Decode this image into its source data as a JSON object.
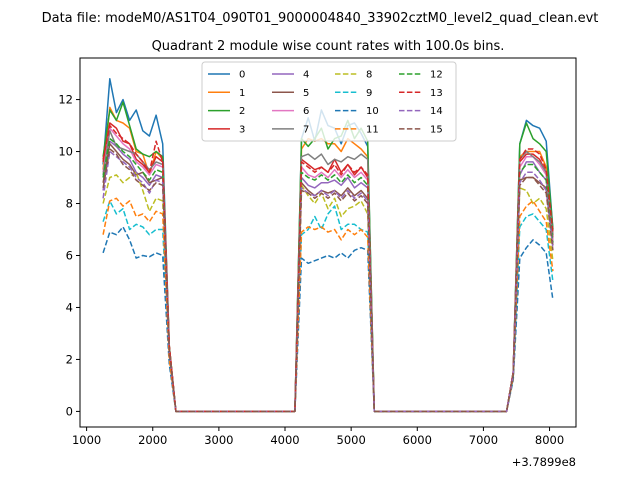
{
  "suptitle": "Data file: modeM0/AS1T04_090T01_9000004840_33902cztM0_level2_quad_clean.evt",
  "chart_data": {
    "type": "line",
    "title": "Quadrant 2 module wise count rates with 100.0s bins.",
    "xlabel": "",
    "ylabel": "",
    "x_offset_label": "+3.7899e8",
    "xlim": [
      900,
      8400
    ],
    "ylim": [
      -0.6,
      13.6
    ],
    "xticks": [
      1000,
      2000,
      3000,
      4000,
      5000,
      6000,
      7000,
      8000
    ],
    "yticks": [
      0,
      2,
      4,
      6,
      8,
      10,
      12
    ],
    "legend_location": "top-center",
    "x": [
      1250,
      1350,
      1450,
      1550,
      1650,
      1750,
      1850,
      1950,
      2050,
      2150,
      2250,
      2350,
      2450,
      4150,
      4250,
      4350,
      4450,
      4550,
      4650,
      4750,
      4850,
      4950,
      5050,
      5150,
      5250,
      5350,
      5450,
      7350,
      7450,
      7550,
      7650,
      7750,
      7850,
      7950,
      8050
    ],
    "series": [
      {
        "name": "0",
        "color": "#1f77b4",
        "dash": "solid",
        "values": [
          9.5,
          12.8,
          11.5,
          12.0,
          11.2,
          11.6,
          10.8,
          10.6,
          11.4,
          10.3,
          2.5,
          0,
          0,
          0,
          10.5,
          11.3,
          10.4,
          11.6,
          11.0,
          10.9,
          10.3,
          11.0,
          11.1,
          10.7,
          10.2,
          0,
          0,
          0,
          1.5,
          10.3,
          11.2,
          11.0,
          10.9,
          10.4,
          7.0
        ]
      },
      {
        "name": "1",
        "color": "#ff7f0e",
        "dash": "solid",
        "values": [
          9.3,
          11.7,
          11.2,
          11.1,
          10.9,
          10.0,
          9.9,
          9.1,
          10.0,
          9.7,
          2.5,
          0,
          0,
          0,
          10.1,
          10.5,
          10.4,
          10.5,
          10.3,
          10.3,
          10.0,
          10.5,
          10.3,
          10.1,
          9.8,
          0,
          0,
          0,
          1.5,
          9.8,
          10.0,
          10.0,
          10.0,
          9.4,
          6.8
        ]
      },
      {
        "name": "2",
        "color": "#2ca02c",
        "dash": "solid",
        "values": [
          9.8,
          11.6,
          11.2,
          11.9,
          11.0,
          10.1,
          9.9,
          9.8,
          10.0,
          9.8,
          2.5,
          0,
          0,
          0,
          10.5,
          10.2,
          10.5,
          10.9,
          10.1,
          10.5,
          10.6,
          11.2,
          10.5,
          10.9,
          10.4,
          0,
          0,
          0,
          1.5,
          10.3,
          11.1,
          10.5,
          10.3,
          10.0,
          7.0
        ]
      },
      {
        "name": "3",
        "color": "#d62728",
        "dash": "solid",
        "values": [
          9.6,
          11.1,
          10.9,
          10.4,
          10.3,
          9.7,
          9.5,
          9.2,
          9.8,
          9.6,
          2.5,
          0,
          0,
          0,
          9.7,
          9.5,
          9.3,
          9.4,
          9.2,
          9.7,
          9.2,
          9.5,
          9.1,
          9.4,
          9.0,
          0,
          0,
          0,
          1.5,
          9.6,
          9.9,
          9.9,
          9.7,
          9.2,
          6.7
        ]
      },
      {
        "name": "4",
        "color": "#9467bd",
        "dash": "solid",
        "values": [
          8.5,
          10.4,
          10.2,
          9.9,
          9.7,
          9.2,
          9.0,
          8.7,
          9.1,
          9.0,
          2.3,
          0,
          0,
          0,
          9.0,
          8.7,
          8.6,
          8.8,
          8.8,
          8.9,
          8.7,
          9.0,
          8.6,
          8.8,
          8.6,
          0,
          0,
          0,
          1.4,
          9.1,
          9.6,
          9.6,
          9.2,
          8.9,
          6.5
        ]
      },
      {
        "name": "5",
        "color": "#8c564b",
        "dash": "solid",
        "values": [
          8.8,
          10.3,
          10.0,
          9.7,
          9.5,
          9.1,
          9.2,
          8.8,
          8.9,
          9.0,
          2.3,
          0,
          0,
          0,
          8.8,
          8.5,
          8.3,
          8.5,
          8.4,
          8.5,
          8.3,
          8.6,
          8.3,
          8.5,
          8.2,
          0,
          0,
          0,
          1.4,
          8.9,
          9.0,
          9.0,
          8.8,
          8.6,
          6.4
        ]
      },
      {
        "name": "6",
        "color": "#e377c2",
        "dash": "solid",
        "values": [
          9.2,
          10.9,
          10.6,
          10.3,
          10.1,
          9.6,
          9.4,
          9.1,
          9.5,
          9.4,
          2.4,
          0,
          0,
          0,
          9.4,
          9.1,
          9.0,
          9.2,
          9.0,
          9.3,
          9.0,
          9.3,
          9.0,
          9.2,
          8.9,
          0,
          0,
          0,
          1.5,
          9.4,
          9.8,
          9.8,
          9.5,
          9.1,
          6.6
        ]
      },
      {
        "name": "7",
        "color": "#7f7f7f",
        "dash": "solid",
        "values": [
          9.1,
          10.8,
          10.2,
          10.1,
          10.0,
          9.9,
          9.6,
          9.3,
          9.6,
          9.5,
          2.4,
          0,
          0,
          0,
          9.8,
          9.9,
          9.7,
          9.9,
          9.5,
          9.7,
          9.6,
          9.8,
          9.7,
          9.9,
          9.7,
          0,
          0,
          0,
          1.5,
          9.7,
          10.0,
          9.8,
          9.6,
          9.2,
          6.8
        ]
      },
      {
        "name": "8",
        "color": "#bcbd22",
        "dash": "dashed",
        "values": [
          8.0,
          9.0,
          9.1,
          8.8,
          9.0,
          9.2,
          8.5,
          7.7,
          8.2,
          8.1,
          2.2,
          0,
          0,
          0,
          8.7,
          8.3,
          8.0,
          8.4,
          7.8,
          8.2,
          7.5,
          7.8,
          7.9,
          8.1,
          7.6,
          0,
          0,
          0,
          1.4,
          8.6,
          8.5,
          8.0,
          8.2,
          7.8,
          5.8
        ]
      },
      {
        "name": "9",
        "color": "#17becf",
        "dash": "dashed",
        "values": [
          7.3,
          8.1,
          7.6,
          7.8,
          7.0,
          7.2,
          7.1,
          6.8,
          7.0,
          7.0,
          2.0,
          0,
          0,
          0,
          6.8,
          7.0,
          7.5,
          7.0,
          7.6,
          7.9,
          7.0,
          7.2,
          7.2,
          7.0,
          6.9,
          0,
          0,
          0,
          1.3,
          7.1,
          7.5,
          7.6,
          7.3,
          7.0,
          5.0
        ]
      },
      {
        "name": "10",
        "color": "#1f77b4",
        "dash": "dashed",
        "values": [
          6.1,
          6.9,
          6.8,
          7.1,
          6.6,
          5.9,
          6.0,
          5.95,
          6.1,
          6.0,
          1.8,
          0,
          0,
          0,
          5.9,
          5.7,
          5.8,
          5.9,
          6.0,
          5.9,
          6.1,
          5.9,
          6.2,
          6.3,
          6.2,
          0,
          0,
          0,
          1.2,
          5.9,
          6.3,
          6.6,
          6.4,
          6.1,
          4.3
        ]
      },
      {
        "name": "11",
        "color": "#ff7f0e",
        "dash": "dashed",
        "values": [
          6.8,
          8.1,
          8.2,
          7.9,
          8.1,
          7.5,
          7.6,
          7.3,
          7.7,
          7.6,
          2.0,
          0,
          0,
          0,
          6.9,
          7.1,
          7.0,
          7.1,
          6.9,
          7.0,
          6.6,
          7.0,
          6.8,
          7.0,
          6.7,
          0,
          0,
          0,
          1.3,
          7.5,
          7.9,
          8.1,
          7.7,
          7.3,
          5.4
        ]
      },
      {
        "name": "12",
        "color": "#2ca02c",
        "dash": "dashed",
        "values": [
          9.0,
          10.5,
          10.3,
          10.0,
          9.8,
          9.5,
          9.2,
          8.9,
          9.3,
          9.2,
          2.4,
          0,
          0,
          0,
          9.2,
          9.0,
          8.9,
          9.1,
          8.9,
          9.1,
          8.8,
          9.1,
          8.8,
          9.0,
          8.7,
          0,
          0,
          0,
          1.4,
          9.2,
          9.5,
          9.5,
          9.2,
          8.9,
          6.5
        ]
      },
      {
        "name": "13",
        "color": "#d62728",
        "dash": "dashed",
        "values": [
          9.7,
          11.0,
          10.7,
          10.5,
          10.3,
          9.9,
          9.6,
          9.2,
          10.4,
          9.6,
          2.5,
          0,
          0,
          0,
          9.6,
          9.4,
          9.2,
          9.4,
          9.2,
          9.5,
          9.1,
          9.5,
          9.2,
          9.4,
          9.1,
          0,
          0,
          0,
          1.5,
          9.7,
          10.1,
          10.1,
          9.9,
          9.3,
          6.9
        ]
      },
      {
        "name": "14",
        "color": "#9467bd",
        "dash": "dashed",
        "values": [
          8.2,
          10.0,
          9.8,
          9.6,
          9.4,
          9.0,
          8.8,
          8.4,
          8.9,
          8.8,
          2.3,
          0,
          0,
          0,
          8.6,
          8.4,
          8.3,
          8.5,
          8.3,
          8.5,
          8.2,
          8.5,
          8.2,
          8.4,
          8.1,
          0,
          0,
          0,
          1.4,
          8.8,
          9.2,
          9.2,
          8.9,
          8.5,
          6.3
        ]
      },
      {
        "name": "15",
        "color": "#8c564b",
        "dash": "dashed",
        "values": [
          8.6,
          10.1,
          9.9,
          9.5,
          9.3,
          8.9,
          8.7,
          8.5,
          8.8,
          8.7,
          2.3,
          0,
          0,
          0,
          8.5,
          8.4,
          8.2,
          8.4,
          8.2,
          8.4,
          8.1,
          8.4,
          8.1,
          8.3,
          8.0,
          0,
          0,
          0,
          1.4,
          8.7,
          9.0,
          9.0,
          8.7,
          8.4,
          6.2
        ]
      }
    ]
  }
}
